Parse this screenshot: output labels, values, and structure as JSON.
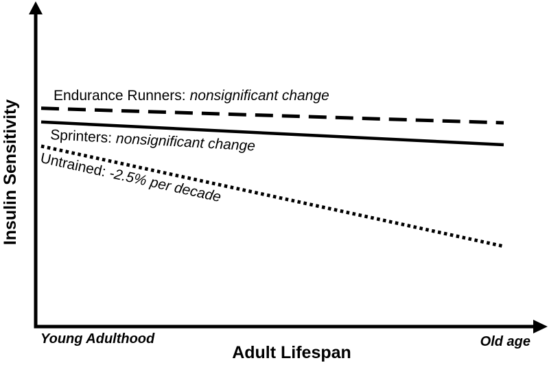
{
  "chart_data": {
    "type": "line",
    "title": "",
    "xlabel": "Adult Lifespan",
    "ylabel": "Insulin Sensitivity",
    "x_tick_labels": [
      "Young Adulthood",
      "Old age"
    ],
    "x": [
      "Young Adulthood",
      "Old age"
    ],
    "ylim": [
      0,
      100
    ],
    "grid": false,
    "legend_position": "inline-labels",
    "axes_style": "arrow-ended, no numeric ticks",
    "series": [
      {
        "name": "Endurance Runners",
        "label": "Endurance Runners:",
        "annotation": "nonsignificant change",
        "line_style": "dashed",
        "values": [
          79.3,
          74.0
        ]
      },
      {
        "name": "Sprinters",
        "label": "Sprinters:",
        "annotation": "nonsignificant change",
        "line_style": "solid",
        "values": [
          74.3,
          66.0
        ]
      },
      {
        "name": "Untrained",
        "label": "Untrained:",
        "annotation": "-2.5% per decade",
        "line_style": "dotted",
        "values": [
          65.5,
          29.0
        ]
      }
    ]
  },
  "colors": {
    "line": "#000000",
    "text": "#000000",
    "background": "#ffffff"
  }
}
